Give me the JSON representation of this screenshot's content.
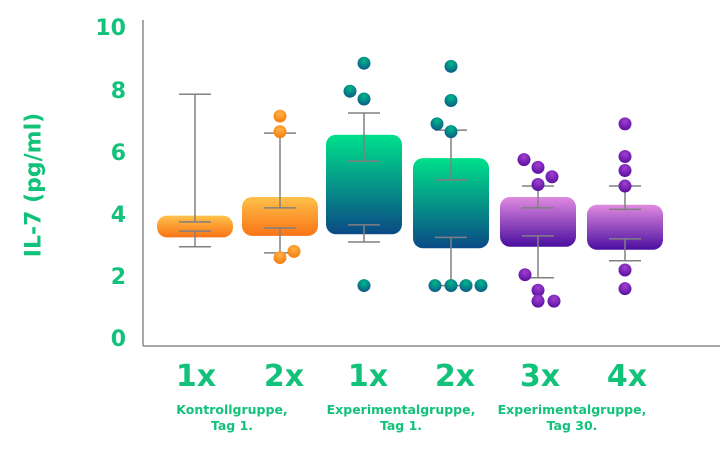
{
  "chart_data": {
    "type": "box",
    "title": "",
    "ylabel": "IL-7 (pg/ml)",
    "xlabel": "",
    "ylim": [
      0,
      10
    ],
    "yticks": [
      0,
      2,
      4,
      6,
      8,
      10
    ],
    "grid": false,
    "categories": [
      "1x",
      "2x",
      "1x",
      "2x",
      "3x",
      "4x"
    ],
    "groups": [
      {
        "label_line1": "Kontrollgruppe,",
        "label_line2": "Tag 1.",
        "members": [
          0,
          1
        ]
      },
      {
        "label_line1": "Experimentalgruppe,",
        "label_line2": "Tag 1.",
        "members": [
          2,
          3
        ]
      },
      {
        "label_line1": "Experimentalgruppe,",
        "label_line2": "Tag 30.",
        "members": [
          4,
          5
        ]
      }
    ],
    "series": [
      {
        "name": "Kontrollgruppe Tag 1 1x",
        "box_low": 3.3,
        "box_high": 4.0,
        "line_upper": 3.8,
        "line_lower": 3.5,
        "whisker_high": 7.9,
        "whisker_low": 3.0,
        "outliers": [],
        "color_top": "#ffc24a",
        "color_bottom": "#f97316"
      },
      {
        "name": "Kontrollgruppe Tag 1 2x",
        "box_low": 3.35,
        "box_high": 4.6,
        "line_upper": 4.25,
        "line_lower": 3.6,
        "whisker_high": 6.65,
        "whisker_low": 2.8,
        "outliers": [
          [
            0,
            7.2
          ],
          [
            0,
            6.7
          ],
          [
            0,
            2.65
          ],
          [
            14,
            2.85
          ]
        ],
        "color_top": "#ffc24a",
        "color_bottom": "#f97316"
      },
      {
        "name": "Experimentalgruppe Tag 1 1x",
        "box_low": 3.4,
        "box_high": 6.6,
        "line_upper": 5.75,
        "line_lower": 3.7,
        "whisker_high": 7.3,
        "whisker_low": 3.15,
        "outliers": [
          [
            0,
            8.9
          ],
          [
            -14,
            8.0
          ],
          [
            0,
            7.75
          ],
          [
            0,
            1.75
          ]
        ],
        "color_top": "#00e08a",
        "color_bottom": "#0b4a86"
      },
      {
        "name": "Experimentalgruppe Tag 1 2x",
        "box_low": 2.95,
        "box_high": 5.85,
        "line_upper": 5.15,
        "line_lower": 3.3,
        "whisker_high": 6.75,
        "whisker_low": 1.75,
        "outliers": [
          [
            0,
            8.8
          ],
          [
            0,
            7.7
          ],
          [
            -14,
            6.95
          ],
          [
            0,
            6.7
          ],
          [
            -16,
            1.75
          ],
          [
            0,
            1.75
          ],
          [
            15,
            1.75
          ],
          [
            30,
            1.75
          ]
        ],
        "color_top": "#00e08a",
        "color_bottom": "#0b4a86"
      },
      {
        "name": "Experimentalgruppe Tag 30 3x",
        "box_low": 3.0,
        "box_high": 4.6,
        "line_upper": 4.25,
        "line_lower": 3.35,
        "whisker_high": 4.95,
        "whisker_low": 2.0,
        "outliers": [
          [
            -14,
            5.8
          ],
          [
            0,
            5.55
          ],
          [
            14,
            5.25
          ],
          [
            0,
            5.0
          ],
          [
            -13,
            2.1
          ],
          [
            0,
            1.6
          ],
          [
            0,
            1.25
          ],
          [
            16,
            1.25
          ]
        ],
        "color_top": "#e08ae0",
        "color_bottom": "#4a0ea0"
      },
      {
        "name": "Experimentalgruppe Tag 30 4x",
        "box_low": 2.9,
        "box_high": 4.35,
        "line_upper": 4.2,
        "line_lower": 3.25,
        "whisker_high": 4.95,
        "whisker_low": 2.55,
        "outliers": [
          [
            0,
            6.95
          ],
          [
            0,
            5.9
          ],
          [
            0,
            5.45
          ],
          [
            0,
            4.95
          ],
          [
            0,
            2.25
          ],
          [
            0,
            1.65
          ]
        ],
        "color_top": "#e08ae0",
        "color_bottom": "#4a0ea0"
      }
    ]
  },
  "colors": {
    "label": "#13c27a",
    "axis": "#8a8a8a",
    "whisker": "#808080"
  }
}
